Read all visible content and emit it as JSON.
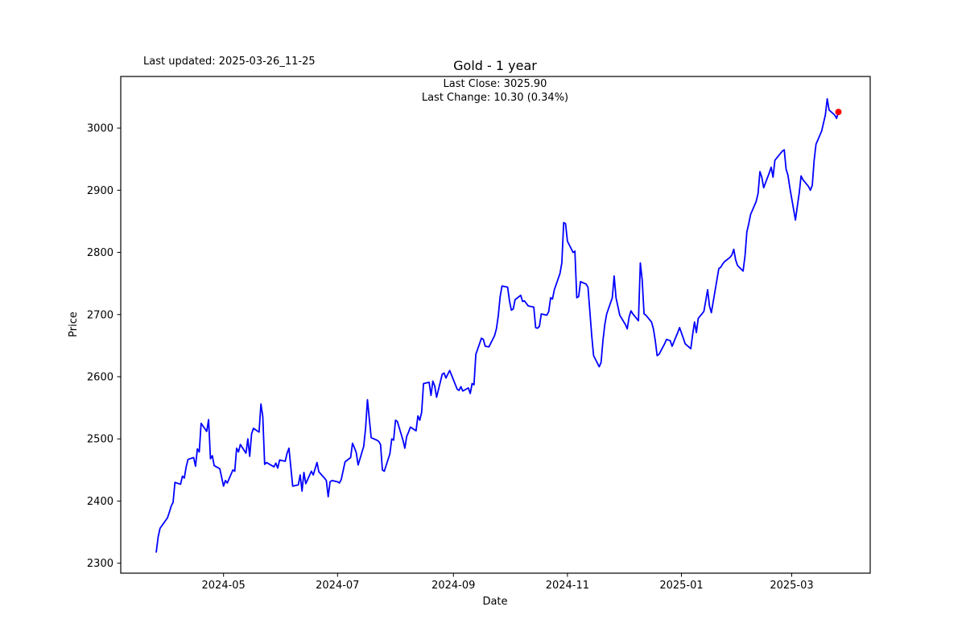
{
  "header": {
    "last_updated": "Last updated: 2025-03-26_11-25"
  },
  "chart_data": {
    "type": "line",
    "title": "Gold - 1 year",
    "annotation": [
      "Last Close: 3025.90",
      "Last Change: 10.30 (0.34%)"
    ],
    "last_close": 3025.9,
    "last_change": "10.30 (0.34%)",
    "xlabel": "Date",
    "ylabel": "Price",
    "legend_position": "none",
    "grid": false,
    "line_color": "#0000ff",
    "marker_color": "#ff0000",
    "frame_color": "#000000",
    "xlim": [
      "2024-03-07",
      "2025-04-12"
    ],
    "ylim": [
      2284,
      3083
    ],
    "y_ticks": [
      2300,
      2400,
      2500,
      2600,
      2700,
      2800,
      2900,
      3000
    ],
    "x_ticks": [
      {
        "date": "2024-05-01",
        "label": "2024-05"
      },
      {
        "date": "2024-07-01",
        "label": "2024-07"
      },
      {
        "date": "2024-09-01",
        "label": "2024-09"
      },
      {
        "date": "2024-11-01",
        "label": "2024-11"
      },
      {
        "date": "2025-01-01",
        "label": "2025-01"
      },
      {
        "date": "2025-03-01",
        "label": "2025-03"
      }
    ],
    "series": [
      {
        "name": "Gold",
        "dates": [
          "2024-03-26",
          "2024-03-27",
          "2024-03-28",
          "2024-04-01",
          "2024-04-02",
          "2024-04-03",
          "2024-04-04",
          "2024-04-05",
          "2024-04-08",
          "2024-04-09",
          "2024-04-10",
          "2024-04-11",
          "2024-04-12",
          "2024-04-15",
          "2024-04-16",
          "2024-04-17",
          "2024-04-18",
          "2024-04-19",
          "2024-04-22",
          "2024-04-23",
          "2024-04-24",
          "2024-04-25",
          "2024-04-26",
          "2024-04-29",
          "2024-04-30",
          "2024-05-01",
          "2024-05-02",
          "2024-05-03",
          "2024-05-06",
          "2024-05-07",
          "2024-05-08",
          "2024-05-09",
          "2024-05-10",
          "2024-05-13",
          "2024-05-14",
          "2024-05-15",
          "2024-05-16",
          "2024-05-17",
          "2024-05-20",
          "2024-05-21",
          "2024-05-22",
          "2024-05-23",
          "2024-05-24",
          "2024-05-28",
          "2024-05-29",
          "2024-05-30",
          "2024-05-31",
          "2024-06-03",
          "2024-06-04",
          "2024-06-05",
          "2024-06-07",
          "2024-06-10",
          "2024-06-11",
          "2024-06-12",
          "2024-06-13",
          "2024-06-14",
          "2024-06-17",
          "2024-06-18",
          "2024-06-20",
          "2024-06-21",
          "2024-06-24",
          "2024-06-25",
          "2024-06-26",
          "2024-06-27",
          "2024-06-28",
          "2024-07-01",
          "2024-07-02",
          "2024-07-03",
          "2024-07-05",
          "2024-07-08",
          "2024-07-09",
          "2024-07-10",
          "2024-07-11",
          "2024-07-12",
          "2024-07-15",
          "2024-07-16",
          "2024-07-17",
          "2024-07-18",
          "2024-07-19",
          "2024-07-22",
          "2024-07-23",
          "2024-07-24",
          "2024-07-25",
          "2024-07-26",
          "2024-07-29",
          "2024-07-30",
          "2024-07-31",
          "2024-08-01",
          "2024-08-02",
          "2024-08-05",
          "2024-08-06",
          "2024-08-07",
          "2024-08-08",
          "2024-08-09",
          "2024-08-12",
          "2024-08-13",
          "2024-08-14",
          "2024-08-15",
          "2024-08-16",
          "2024-08-19",
          "2024-08-20",
          "2024-08-21",
          "2024-08-22",
          "2024-08-23",
          "2024-08-26",
          "2024-08-27",
          "2024-08-28",
          "2024-08-29",
          "2024-08-30",
          "2024-09-03",
          "2024-09-04",
          "2024-09-05",
          "2024-09-06",
          "2024-09-09",
          "2024-09-10",
          "2024-09-11",
          "2024-09-12",
          "2024-09-13",
          "2024-09-16",
          "2024-09-17",
          "2024-09-18",
          "2024-09-20",
          "2024-09-23",
          "2024-09-24",
          "2024-09-25",
          "2024-09-26",
          "2024-09-27",
          "2024-09-30",
          "2024-10-01",
          "2024-10-02",
          "2024-10-03",
          "2024-10-04",
          "2024-10-07",
          "2024-10-08",
          "2024-10-09",
          "2024-10-10",
          "2024-10-11",
          "2024-10-14",
          "2024-10-15",
          "2024-10-16",
          "2024-10-17",
          "2024-10-18",
          "2024-10-21",
          "2024-10-22",
          "2024-10-23",
          "2024-10-24",
          "2024-10-25",
          "2024-10-28",
          "2024-10-29",
          "2024-10-30",
          "2024-10-31",
          "2024-11-01",
          "2024-11-04",
          "2024-11-05",
          "2024-11-06",
          "2024-11-07",
          "2024-11-08",
          "2024-11-11",
          "2024-11-12",
          "2024-11-13",
          "2024-11-14",
          "2024-11-15",
          "2024-11-18",
          "2024-11-19",
          "2024-11-20",
          "2024-11-21",
          "2024-11-22",
          "2024-11-25",
          "2024-11-26",
          "2024-11-27",
          "2024-11-29",
          "2024-12-02",
          "2024-12-03",
          "2024-12-04",
          "2024-12-05",
          "2024-12-06",
          "2024-12-09",
          "2024-12-10",
          "2024-12-11",
          "2024-12-12",
          "2024-12-13",
          "2024-12-16",
          "2024-12-17",
          "2024-12-18",
          "2024-12-19",
          "2024-12-20",
          "2024-12-23",
          "2024-12-24",
          "2024-12-26",
          "2024-12-27",
          "2024-12-30",
          "2024-12-31",
          "2025-01-02",
          "2025-01-03",
          "2025-01-06",
          "2025-01-07",
          "2025-01-08",
          "2025-01-09",
          "2025-01-10",
          "2025-01-13",
          "2025-01-14",
          "2025-01-15",
          "2025-01-16",
          "2025-01-17",
          "2025-01-21",
          "2025-01-22",
          "2025-01-23",
          "2025-01-24",
          "2025-01-27",
          "2025-01-28",
          "2025-01-29",
          "2025-01-30",
          "2025-01-31",
          "2025-02-03",
          "2025-02-04",
          "2025-02-05",
          "2025-02-06",
          "2025-02-07",
          "2025-02-10",
          "2025-02-11",
          "2025-02-12",
          "2025-02-13",
          "2025-02-14",
          "2025-02-17",
          "2025-02-18",
          "2025-02-19",
          "2025-02-20",
          "2025-02-21",
          "2025-02-24",
          "2025-02-25",
          "2025-02-26",
          "2025-02-27",
          "2025-02-28",
          "2025-03-03",
          "2025-03-04",
          "2025-03-05",
          "2025-03-06",
          "2025-03-07",
          "2025-03-10",
          "2025-03-11",
          "2025-03-12",
          "2025-03-13",
          "2025-03-14",
          "2025-03-17",
          "2025-03-18",
          "2025-03-19",
          "2025-03-20",
          "2025-03-21",
          "2025-03-24",
          "2025-03-25",
          "2025-03-26"
        ],
        "values": [
          2318,
          2342,
          2356,
          2373,
          2382,
          2392,
          2398,
          2430,
          2427,
          2440,
          2437,
          2455,
          2467,
          2470,
          2456,
          2484,
          2479,
          2525,
          2512,
          2531,
          2468,
          2473,
          2457,
          2452,
          2438,
          2424,
          2433,
          2429,
          2450,
          2448,
          2485,
          2479,
          2491,
          2477,
          2500,
          2472,
          2508,
          2517,
          2511,
          2556,
          2536,
          2459,
          2462,
          2455,
          2461,
          2453,
          2466,
          2464,
          2477,
          2485,
          2424,
          2426,
          2442,
          2416,
          2446,
          2428,
          2448,
          2442,
          2462,
          2447,
          2437,
          2433,
          2407,
          2431,
          2433,
          2431,
          2429,
          2435,
          2463,
          2470,
          2493,
          2486,
          2478,
          2458,
          2488,
          2517,
          2563,
          2532,
          2502,
          2498,
          2496,
          2491,
          2450,
          2448,
          2476,
          2500,
          2498,
          2530,
          2528,
          2498,
          2485,
          2504,
          2511,
          2519,
          2513,
          2537,
          2530,
          2543,
          2589,
          2591,
          2570,
          2593,
          2585,
          2567,
          2604,
          2606,
          2598,
          2604,
          2610,
          2580,
          2578,
          2584,
          2577,
          2582,
          2573,
          2589,
          2587,
          2636,
          2662,
          2660,
          2649,
          2648,
          2666,
          2677,
          2698,
          2729,
          2746,
          2744,
          2722,
          2707,
          2709,
          2724,
          2731,
          2721,
          2722,
          2718,
          2714,
          2712,
          2679,
          2678,
          2681,
          2701,
          2699,
          2705,
          2727,
          2725,
          2740,
          2766,
          2783,
          2848,
          2846,
          2818,
          2800,
          2802,
          2727,
          2729,
          2753,
          2749,
          2744,
          2705,
          2666,
          2634,
          2616,
          2623,
          2658,
          2684,
          2701,
          2727,
          2762,
          2727,
          2699,
          2684,
          2677,
          2696,
          2706,
          2701,
          2690,
          2783,
          2756,
          2701,
          2699,
          2688,
          2677,
          2658,
          2634,
          2636,
          2653,
          2660,
          2658,
          2649,
          2671,
          2679,
          2662,
          2653,
          2645,
          2668,
          2688,
          2671,
          2694,
          2705,
          2722,
          2740,
          2714,
          2703,
          2774,
          2776,
          2781,
          2785,
          2792,
          2796,
          2805,
          2788,
          2779,
          2770,
          2794,
          2833,
          2846,
          2861,
          2882,
          2895,
          2930,
          2921,
          2904,
          2928,
          2937,
          2921,
          2948,
          2952,
          2963,
          2965,
          2934,
          2924,
          2904,
          2852,
          2874,
          2895,
          2923,
          2917,
          2906,
          2900,
          2908,
          2948,
          2974,
          2995,
          3008,
          3021,
          3047,
          3029,
          3021,
          3015.6,
          3025.9
        ]
      }
    ]
  }
}
